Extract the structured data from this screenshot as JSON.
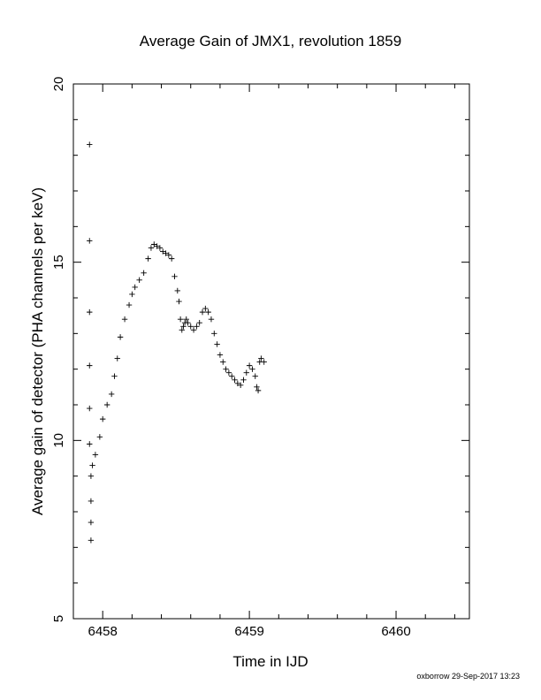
{
  "footer": "oxborrow 29-Sep-2017 13:23",
  "chart_data": {
    "type": "scatter",
    "title": "Average Gain of JMX1, revolution 1859",
    "xlabel": "Time in IJD",
    "ylabel": "Average gain of detector (PHA channels per keV)",
    "xlim": [
      6457.8,
      6460.5
    ],
    "ylim": [
      5,
      20
    ],
    "xticks": [
      6458,
      6459,
      6460
    ],
    "xtick_labels": [
      "6458",
      "6459",
      "6460"
    ],
    "yticks": [
      5,
      10,
      15,
      20
    ],
    "ytick_labels": [
      "5",
      "10",
      "15",
      "20"
    ],
    "grid": false,
    "marker": "+",
    "series": [
      {
        "x": [
          6457.91,
          6457.91,
          6457.91,
          6457.91,
          6457.91,
          6457.91,
          6457.92,
          6457.92,
          6457.92,
          6457.92,
          6457.93,
          6457.95,
          6457.98,
          6458.0,
          6458.03,
          6458.06,
          6458.08,
          6458.1,
          6458.12,
          6458.15,
          6458.18,
          6458.2,
          6458.22,
          6458.25,
          6458.28,
          6458.31,
          6458.33,
          6458.35,
          6458.37,
          6458.39,
          6458.41,
          6458.43,
          6458.45,
          6458.47,
          6458.49,
          6458.51,
          6458.52,
          6458.53,
          6458.54,
          6458.55,
          6458.56,
          6458.57,
          6458.58,
          6458.6,
          6458.62,
          6458.64,
          6458.66,
          6458.68,
          6458.7,
          6458.72,
          6458.74,
          6458.76,
          6458.78,
          6458.8,
          6458.82,
          6458.84,
          6458.86,
          6458.88,
          6458.9,
          6458.92,
          6458.94,
          6458.96,
          6458.98,
          6459.0,
          6459.02,
          6459.04,
          6459.05,
          6459.06,
          6459.07,
          6459.08,
          6459.1
        ],
        "y": [
          18.3,
          15.6,
          13.6,
          12.1,
          10.9,
          9.9,
          8.3,
          7.7,
          7.2,
          9.0,
          9.3,
          9.6,
          10.1,
          10.6,
          11.0,
          11.3,
          11.8,
          12.3,
          12.9,
          13.4,
          13.8,
          14.1,
          14.3,
          14.5,
          14.7,
          15.1,
          15.4,
          15.5,
          15.45,
          15.4,
          15.3,
          15.25,
          15.2,
          15.1,
          14.6,
          14.2,
          13.9,
          13.4,
          13.1,
          13.2,
          13.3,
          13.4,
          13.3,
          13.2,
          13.1,
          13.2,
          13.3,
          13.6,
          13.7,
          13.6,
          13.4,
          13.0,
          12.7,
          12.4,
          12.2,
          12.0,
          11.9,
          11.8,
          11.7,
          11.6,
          11.55,
          11.7,
          11.9,
          12.1,
          12.0,
          11.8,
          11.5,
          11.4,
          12.2,
          12.3,
          12.2
        ]
      }
    ]
  }
}
